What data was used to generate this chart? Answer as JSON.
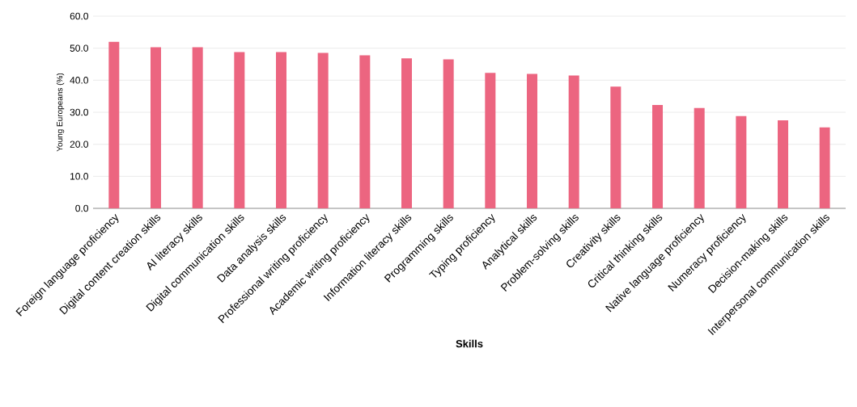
{
  "chart_data": {
    "type": "bar",
    "xlabel": "Skills",
    "ylabel": "Young Europeans (%)",
    "categories": [
      "Foreign language proficiency",
      "Digital content creation skills",
      "AI literacy skills",
      "Digital communication skills",
      "Data analysis skills",
      "Professional writing proficiency",
      "Academic writing proficiency",
      "Information literacy skills",
      "Programming skills",
      "Typing proficiency",
      "Analytical skills",
      "Problem-solving skills",
      "Creativity skills",
      "Critical thinking skills",
      "Native language proficiency",
      "Numeracy proficiency",
      "Decision-making skills",
      "Interpersonal communication skills"
    ],
    "values": [
      52.0,
      50.3,
      50.3,
      48.8,
      48.8,
      48.5,
      47.8,
      46.8,
      46.5,
      42.3,
      42.0,
      41.5,
      38.0,
      32.3,
      31.3,
      28.8,
      27.5,
      25.3
    ],
    "color": "#ec6580",
    "ylim": [
      0,
      60
    ],
    "yticks": [
      {
        "value": 0,
        "label": "0.0"
      },
      {
        "value": 10,
        "label": "10.0"
      },
      {
        "value": 20,
        "label": "20.0"
      },
      {
        "value": 30,
        "label": "30.0"
      },
      {
        "value": 40,
        "label": "40.0"
      },
      {
        "value": 50,
        "label": "50.0"
      },
      {
        "value": 60,
        "label": "60.0"
      }
    ],
    "grid": "y"
  }
}
